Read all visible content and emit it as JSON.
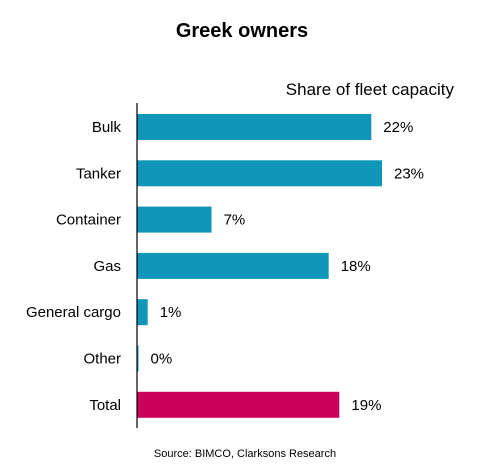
{
  "chart_data": {
    "type": "bar",
    "orientation": "horizontal",
    "title": "Greek owners",
    "subtitle": "Share of fleet capacity",
    "categories": [
      "Bulk",
      "Tanker",
      "Container",
      "Gas",
      "General cargo",
      "Other",
      "Total"
    ],
    "values": [
      22,
      23,
      7,
      18,
      1,
      0,
      19
    ],
    "value_labels": [
      "22%",
      "23%",
      "7%",
      "18%",
      "1%",
      "0%",
      "19%"
    ],
    "unit": "%",
    "xlim": [
      0,
      25
    ],
    "bar_colors": [
      "#0f96b9",
      "#0f96b9",
      "#0f96b9",
      "#0f96b9",
      "#0f96b9",
      "#0f96b9",
      "#c8005a"
    ],
    "grid": false,
    "source": "Source: BIMCO, Clarksons Research"
  },
  "colors": {
    "bar": "#0f96b9",
    "total_bar": "#c8005a",
    "axis": "#000000"
  }
}
